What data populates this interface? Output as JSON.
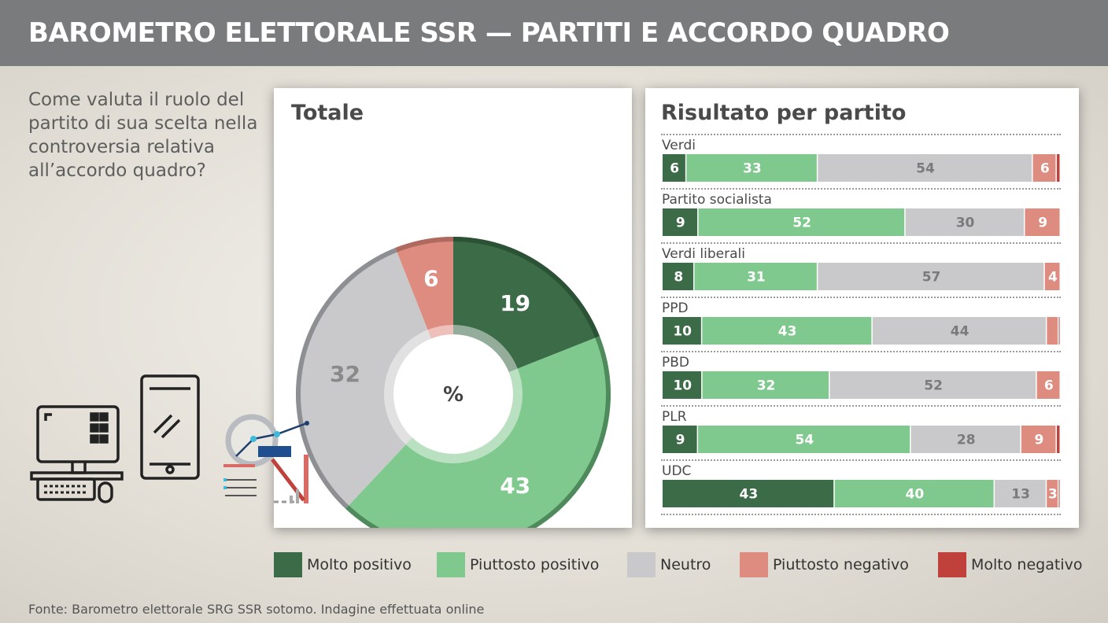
{
  "header": {
    "title": "BAROMETRO ELETTORALE SSR — PARTITI E ACCORDO QUADRO"
  },
  "question": "Come valuta il ruolo del partito di sua scelta nella controversia relativa all’accordo quadro?",
  "source": "Fonte: Barometro elettorale SRG SSR sotomo. Indagine effettuata online",
  "colors": {
    "molto_positivo": "#3b6b47",
    "piuttosto_positivo": "#80c98e",
    "neutro": "#c9c9cb",
    "piuttosto_negativo": "#df8c80",
    "molto_negativo": "#c0413c"
  },
  "chart_data": [
    {
      "type": "pie",
      "title": "Totale",
      "center_label": "%",
      "slices": [
        {
          "name": "Molto positivo",
          "value": 19,
          "label": "19"
        },
        {
          "name": "Piuttosto positivo",
          "value": 43,
          "label": "43"
        },
        {
          "name": "Neutro",
          "value": 32,
          "label": "32"
        },
        {
          "name": "Piuttosto negativo",
          "value": 6,
          "label": "6"
        }
      ]
    },
    {
      "type": "bar",
      "orientation": "horizontal-stacked",
      "title": "Risultato per partito",
      "categories": [
        "Verdi",
        "Partito socialista",
        "Verdi liberali",
        "PPD",
        "PBD",
        "PLR",
        "UDC"
      ],
      "series": [
        {
          "name": "Molto positivo",
          "values": [
            6,
            9,
            8,
            10,
            10,
            9,
            43
          ]
        },
        {
          "name": "Piuttosto positivo",
          "values": [
            33,
            52,
            31,
            43,
            32,
            54,
            40
          ]
        },
        {
          "name": "Neutro",
          "values": [
            54,
            30,
            57,
            44,
            52,
            28,
            13
          ]
        },
        {
          "name": "Piuttosto negativo",
          "values": [
            6,
            9,
            4,
            3,
            6,
            9,
            3
          ]
        },
        {
          "name": "Molto negativo",
          "values": [
            1,
            0,
            0,
            0.5,
            0,
            1,
            0.5
          ]
        }
      ],
      "value_labels": [
        [
          "6",
          "33",
          "54",
          "6",
          ""
        ],
        [
          "9",
          "52",
          "30",
          "9",
          ""
        ],
        [
          "8",
          "31",
          "57",
          "4",
          ""
        ],
        [
          "10",
          "43",
          "44",
          "",
          ""
        ],
        [
          "10",
          "32",
          "52",
          "6",
          ""
        ],
        [
          "9",
          "54",
          "28",
          "9",
          ""
        ],
        [
          "43",
          "40",
          "13",
          "3",
          ""
        ]
      ]
    }
  ],
  "legend": [
    {
      "label": "Molto positivo"
    },
    {
      "label": "Piuttosto positivo"
    },
    {
      "label": "Neutro"
    },
    {
      "label": "Piuttosto negativo"
    },
    {
      "label": "Molto negativo"
    }
  ],
  "decoration_icons": [
    "desktop-computer-icon",
    "tablet-icon",
    "magnifier-chart-icon"
  ]
}
